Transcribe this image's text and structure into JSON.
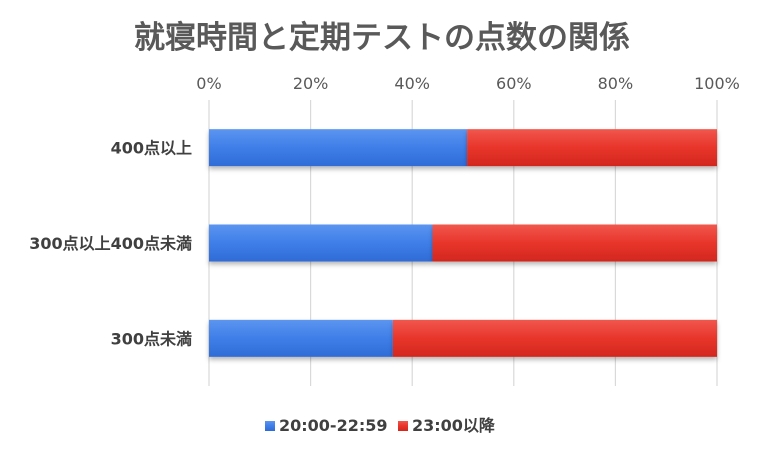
{
  "chart_data": {
    "type": "bar",
    "orientation": "horizontal",
    "stacked": "percent",
    "title": "就寝時間と定期テストの点数の関係",
    "categories": [
      "400点以上",
      "300点以上400点未満",
      "300点未満"
    ],
    "series": [
      {
        "name": "20:00-22:59",
        "values": [
          50.8,
          44.0,
          36.2
        ],
        "color": "#3f7ee8"
      },
      {
        "name": "23:00以降",
        "values": [
          49.2,
          56.0,
          63.8
        ],
        "color": "#e8352b"
      }
    ],
    "x_ticks": [
      "0%",
      "20%",
      "40%",
      "60%",
      "80%",
      "100%"
    ],
    "xlim": [
      0,
      100
    ],
    "x_axis_position": "top",
    "grid": true,
    "legend": "bottom"
  }
}
